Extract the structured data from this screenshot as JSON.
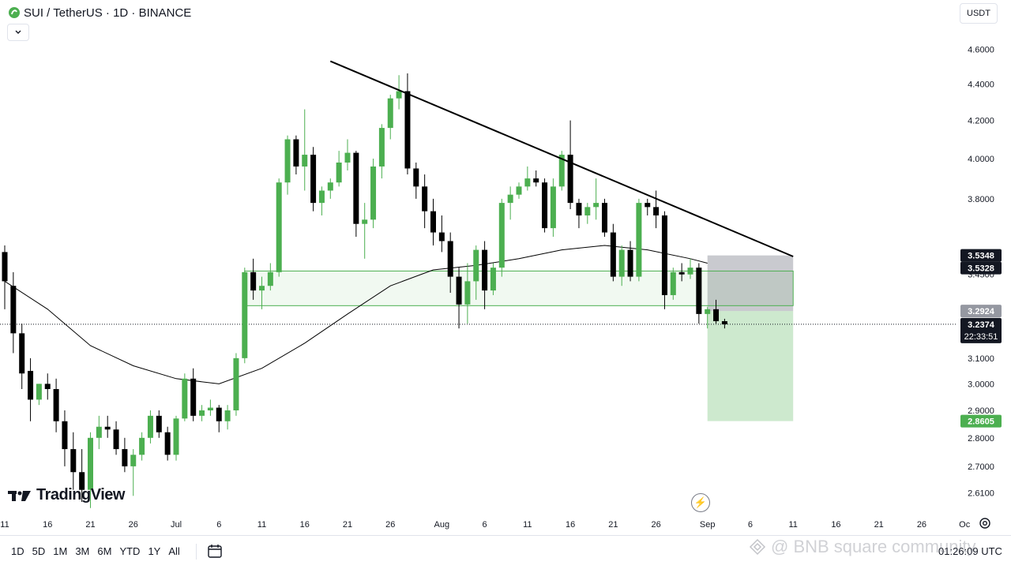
{
  "header": {
    "title": "SUI / TetherUS · 1D · BINANCE",
    "currency": "USDT"
  },
  "bottom": {
    "ranges": [
      "1D",
      "5D",
      "1M",
      "3M",
      "6M",
      "YTD",
      "1Y",
      "All"
    ],
    "timezone": "01:26:09 UTC"
  },
  "branding": {
    "logo_text": "TradingView",
    "watermark": "@ BNB square community"
  },
  "chart_data": {
    "type": "candlestick",
    "symbol": "SUI / TetherUS",
    "interval": "1D",
    "exchange": "BINANCE",
    "price_scale": "log",
    "ylim": [
      2.55,
      4.75
    ],
    "y_ticks": [
      4.6,
      4.4,
      4.2,
      4.0,
      3.8,
      3.45,
      3.1,
      3.0,
      2.9,
      2.8,
      2.7,
      2.61
    ],
    "y_tick_labels": [
      "4.6000",
      "4.4000",
      "4.2000",
      "4.0000",
      "3.8000",
      "3.4500",
      "3.1000",
      "3.0000",
      "2.9000",
      "2.8000",
      "2.7000",
      "2.6100"
    ],
    "x_ticks": [
      {
        "label": "11",
        "day": 0
      },
      {
        "label": "16",
        "day": 5
      },
      {
        "label": "21",
        "day": 10
      },
      {
        "label": "26",
        "day": 15
      },
      {
        "label": "Jul",
        "day": 20
      },
      {
        "label": "6",
        "day": 25
      },
      {
        "label": "11",
        "day": 30
      },
      {
        "label": "16",
        "day": 35
      },
      {
        "label": "21",
        "day": 40
      },
      {
        "label": "26",
        "day": 45
      },
      {
        "label": "Aug",
        "day": 51
      },
      {
        "label": "6",
        "day": 56
      },
      {
        "label": "11",
        "day": 61
      },
      {
        "label": "16",
        "day": 66
      },
      {
        "label": "21",
        "day": 71
      },
      {
        "label": "26",
        "day": 76
      },
      {
        "label": "Sep",
        "day": 82
      },
      {
        "label": "6",
        "day": 87
      },
      {
        "label": "11",
        "day": 92
      },
      {
        "label": "16",
        "day": 97
      },
      {
        "label": "21",
        "day": 102
      },
      {
        "label": "26",
        "day": 107
      },
      {
        "label": "Oc",
        "day": 112
      }
    ],
    "candles": [
      {
        "o": 3.55,
        "h": 3.58,
        "l": 3.3,
        "c": 3.42
      },
      {
        "o": 3.4,
        "h": 3.46,
        "l": 3.12,
        "c": 3.2
      },
      {
        "o": 3.2,
        "h": 3.24,
        "l": 2.98,
        "c": 3.04
      },
      {
        "o": 3.05,
        "h": 3.1,
        "l": 2.86,
        "c": 2.94
      },
      {
        "o": 2.94,
        "h": 3.0,
        "l": 2.92,
        "c": 3.0
      },
      {
        "o": 3.0,
        "h": 3.04,
        "l": 2.94,
        "c": 2.98
      },
      {
        "o": 2.98,
        "h": 3.02,
        "l": 2.82,
        "c": 2.86
      },
      {
        "o": 2.86,
        "h": 2.9,
        "l": 2.7,
        "c": 2.76
      },
      {
        "o": 2.76,
        "h": 2.82,
        "l": 2.62,
        "c": 2.68
      },
      {
        "o": 2.68,
        "h": 2.76,
        "l": 2.58,
        "c": 2.62
      },
      {
        "o": 2.62,
        "h": 2.82,
        "l": 2.56,
        "c": 2.8
      },
      {
        "o": 2.8,
        "h": 2.88,
        "l": 2.76,
        "c": 2.84
      },
      {
        "o": 2.84,
        "h": 2.88,
        "l": 2.8,
        "c": 2.83
      },
      {
        "o": 2.83,
        "h": 2.86,
        "l": 2.74,
        "c": 2.76
      },
      {
        "o": 2.76,
        "h": 2.8,
        "l": 2.68,
        "c": 2.7
      },
      {
        "o": 2.7,
        "h": 2.76,
        "l": 2.6,
        "c": 2.74
      },
      {
        "o": 2.74,
        "h": 2.82,
        "l": 2.72,
        "c": 2.8
      },
      {
        "o": 2.8,
        "h": 2.9,
        "l": 2.78,
        "c": 2.88
      },
      {
        "o": 2.88,
        "h": 2.9,
        "l": 2.8,
        "c": 2.82
      },
      {
        "o": 2.82,
        "h": 2.84,
        "l": 2.72,
        "c": 2.74
      },
      {
        "o": 2.74,
        "h": 2.88,
        "l": 2.72,
        "c": 2.87
      },
      {
        "o": 2.87,
        "h": 3.04,
        "l": 2.86,
        "c": 3.02
      },
      {
        "o": 3.02,
        "h": 3.06,
        "l": 2.86,
        "c": 2.88
      },
      {
        "o": 2.88,
        "h": 2.92,
        "l": 2.86,
        "c": 2.9
      },
      {
        "o": 2.9,
        "h": 2.94,
        "l": 2.88,
        "c": 2.91
      },
      {
        "o": 2.91,
        "h": 2.92,
        "l": 2.82,
        "c": 2.86
      },
      {
        "o": 2.86,
        "h": 2.92,
        "l": 2.83,
        "c": 2.9
      },
      {
        "o": 2.9,
        "h": 3.12,
        "l": 2.88,
        "c": 3.1
      },
      {
        "o": 3.1,
        "h": 3.48,
        "l": 3.08,
        "c": 3.46
      },
      {
        "o": 3.46,
        "h": 3.52,
        "l": 3.34,
        "c": 3.38
      },
      {
        "o": 3.38,
        "h": 3.44,
        "l": 3.3,
        "c": 3.4
      },
      {
        "o": 3.4,
        "h": 3.5,
        "l": 3.38,
        "c": 3.46
      },
      {
        "o": 3.46,
        "h": 3.9,
        "l": 3.44,
        "c": 3.88
      },
      {
        "o": 3.88,
        "h": 4.12,
        "l": 3.82,
        "c": 4.1
      },
      {
        "o": 4.1,
        "h": 4.12,
        "l": 3.92,
        "c": 3.96
      },
      {
        "o": 3.96,
        "h": 4.26,
        "l": 3.84,
        "c": 4.02
      },
      {
        "o": 4.02,
        "h": 4.06,
        "l": 3.74,
        "c": 3.78
      },
      {
        "o": 3.78,
        "h": 3.86,
        "l": 3.72,
        "c": 3.84
      },
      {
        "o": 3.84,
        "h": 3.9,
        "l": 3.8,
        "c": 3.88
      },
      {
        "o": 3.88,
        "h": 4.04,
        "l": 3.86,
        "c": 3.98
      },
      {
        "o": 3.98,
        "h": 4.1,
        "l": 3.94,
        "c": 4.03
      },
      {
        "o": 4.03,
        "h": 4.04,
        "l": 3.62,
        "c": 3.68
      },
      {
        "o": 3.68,
        "h": 3.78,
        "l": 3.52,
        "c": 3.7
      },
      {
        "o": 3.7,
        "h": 4.0,
        "l": 3.66,
        "c": 3.96
      },
      {
        "o": 3.96,
        "h": 4.18,
        "l": 3.9,
        "c": 4.16
      },
      {
        "o": 4.16,
        "h": 4.34,
        "l": 4.1,
        "c": 4.32
      },
      {
        "o": 4.32,
        "h": 4.45,
        "l": 4.26,
        "c": 4.36
      },
      {
        "o": 4.36,
        "h": 4.46,
        "l": 3.92,
        "c": 3.95
      },
      {
        "o": 3.95,
        "h": 3.98,
        "l": 3.8,
        "c": 3.86
      },
      {
        "o": 3.86,
        "h": 3.92,
        "l": 3.66,
        "c": 3.74
      },
      {
        "o": 3.74,
        "h": 3.8,
        "l": 3.58,
        "c": 3.64
      },
      {
        "o": 3.64,
        "h": 3.72,
        "l": 3.55,
        "c": 3.6
      },
      {
        "o": 3.6,
        "h": 3.64,
        "l": 3.37,
        "c": 3.44
      },
      {
        "o": 3.44,
        "h": 3.48,
        "l": 3.22,
        "c": 3.32
      },
      {
        "o": 3.32,
        "h": 3.5,
        "l": 3.24,
        "c": 3.42
      },
      {
        "o": 3.42,
        "h": 3.58,
        "l": 3.34,
        "c": 3.56
      },
      {
        "o": 3.56,
        "h": 3.6,
        "l": 3.3,
        "c": 3.38
      },
      {
        "o": 3.38,
        "h": 3.5,
        "l": 3.36,
        "c": 3.48
      },
      {
        "o": 3.48,
        "h": 3.8,
        "l": 3.44,
        "c": 3.78
      },
      {
        "o": 3.78,
        "h": 3.86,
        "l": 3.7,
        "c": 3.82
      },
      {
        "o": 3.82,
        "h": 3.88,
        "l": 3.8,
        "c": 3.86
      },
      {
        "o": 3.86,
        "h": 3.96,
        "l": 3.84,
        "c": 3.9
      },
      {
        "o": 3.9,
        "h": 3.94,
        "l": 3.86,
        "c": 3.88
      },
      {
        "o": 3.88,
        "h": 3.9,
        "l": 3.64,
        "c": 3.66
      },
      {
        "o": 3.66,
        "h": 3.9,
        "l": 3.62,
        "c": 3.86
      },
      {
        "o": 3.86,
        "h": 4.04,
        "l": 3.84,
        "c": 4.02
      },
      {
        "o": 4.02,
        "h": 4.2,
        "l": 3.75,
        "c": 3.78
      },
      {
        "o": 3.78,
        "h": 3.8,
        "l": 3.66,
        "c": 3.72
      },
      {
        "o": 3.72,
        "h": 3.78,
        "l": 3.68,
        "c": 3.76
      },
      {
        "o": 3.76,
        "h": 3.9,
        "l": 3.7,
        "c": 3.78
      },
      {
        "o": 3.78,
        "h": 3.8,
        "l": 3.62,
        "c": 3.64
      },
      {
        "o": 3.64,
        "h": 3.68,
        "l": 3.42,
        "c": 3.44
      },
      {
        "o": 3.44,
        "h": 3.58,
        "l": 3.4,
        "c": 3.56
      },
      {
        "o": 3.56,
        "h": 3.6,
        "l": 3.42,
        "c": 3.44
      },
      {
        "o": 3.44,
        "h": 3.8,
        "l": 3.42,
        "c": 3.78
      },
      {
        "o": 3.78,
        "h": 3.8,
        "l": 3.72,
        "c": 3.76
      },
      {
        "o": 3.76,
        "h": 3.84,
        "l": 3.66,
        "c": 3.72
      },
      {
        "o": 3.72,
        "h": 3.74,
        "l": 3.3,
        "c": 3.36
      },
      {
        "o": 3.36,
        "h": 3.48,
        "l": 3.34,
        "c": 3.46
      },
      {
        "o": 3.46,
        "h": 3.5,
        "l": 3.42,
        "c": 3.45
      },
      {
        "o": 3.45,
        "h": 3.52,
        "l": 3.43,
        "c": 3.48
      },
      {
        "o": 3.48,
        "h": 3.5,
        "l": 3.24,
        "c": 3.28
      },
      {
        "o": 3.28,
        "h": 3.31,
        "l": 3.22,
        "c": 3.3
      },
      {
        "o": 3.3,
        "h": 3.34,
        "l": 3.24,
        "c": 3.25
      },
      {
        "o": 3.25,
        "h": 3.26,
        "l": 3.22,
        "c": 3.2374
      }
    ],
    "moving_average": {
      "days": [
        0,
        5,
        10,
        15,
        20,
        25,
        30,
        35,
        40,
        45,
        50,
        55,
        60,
        65,
        70,
        75,
        80,
        82
      ],
      "values": [
        3.42,
        3.3,
        3.15,
        3.07,
        3.02,
        3.0,
        3.06,
        3.16,
        3.28,
        3.4,
        3.47,
        3.49,
        3.52,
        3.56,
        3.58,
        3.56,
        3.52,
        3.5
      ]
    },
    "trendline": {
      "start": {
        "day": 38,
        "price": 4.53
      },
      "end": {
        "day": 92,
        "price": 3.53
      }
    },
    "support_zone": {
      "start_day": 28,
      "end_day": 92,
      "top": 3.465,
      "bottom": 3.315
    },
    "position": {
      "start_day": 82,
      "end_day": 92,
      "stop": 3.5348,
      "entry": 3.2924,
      "target": 2.8605
    },
    "price_labels": [
      {
        "value": "3.5348",
        "price": 3.5348,
        "bg": "#131722",
        "fg": "#ffffff"
      },
      {
        "value": "3.5328",
        "price": 3.5328,
        "bg": "#131722",
        "fg": "#ffffff"
      },
      {
        "value": "3.2924",
        "price": 3.2924,
        "bg": "#9598a1",
        "fg": "#ffffff"
      },
      {
        "value": "3.2374",
        "price": 3.2374,
        "bg": "#131722",
        "fg": "#ffffff",
        "sub": "22:33:51"
      },
      {
        "value": "2.8605",
        "price": 2.8605,
        "bg": "#4caf50",
        "fg": "#ffffff"
      }
    ],
    "current_price": 3.2374,
    "colors": {
      "up": "#4caf50",
      "down": "#000000",
      "ma": "#000000",
      "trend": "#000000",
      "zone_fill": "rgba(76,175,80,0.08)",
      "zone_stroke": "#4caf50",
      "stop_fill": "rgba(120,123,134,0.40)",
      "target_fill": "rgba(76,175,80,0.28)"
    }
  }
}
